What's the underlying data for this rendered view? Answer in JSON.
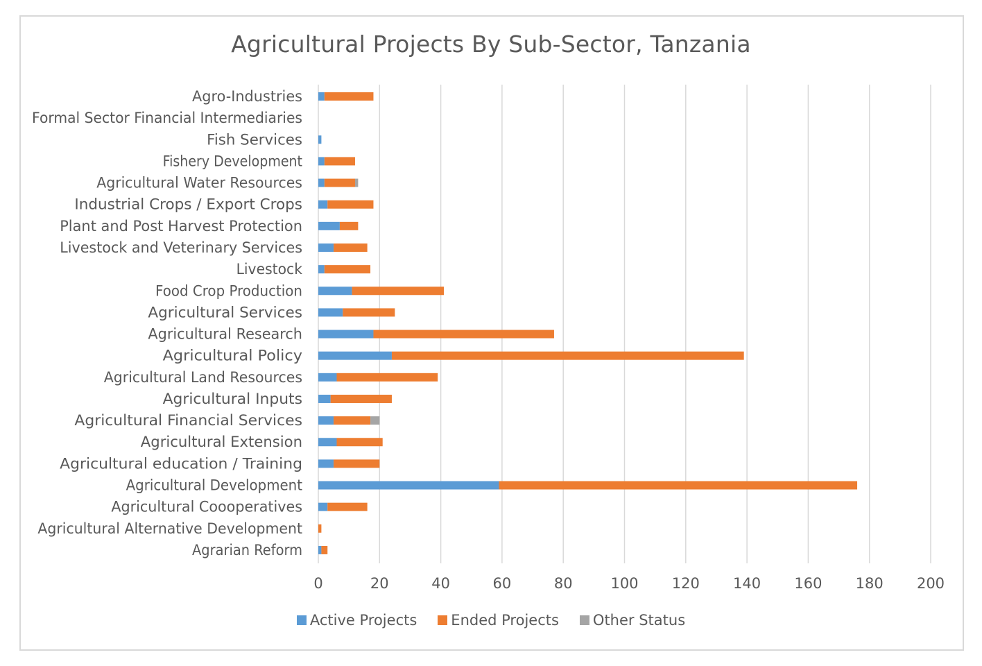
{
  "chart_data": {
    "type": "bar",
    "orientation": "horizontal",
    "stacked": true,
    "title": "Agricultural Projects By Sub-Sector, Tanzania",
    "xlabel": "",
    "ylabel": "",
    "xlim": [
      0,
      200
    ],
    "xticks": [
      0,
      20,
      40,
      60,
      80,
      100,
      120,
      140,
      160,
      180,
      200
    ],
    "grid": true,
    "legend_position": "bottom",
    "categories": [
      "Agro-Industries",
      "Formal Sector Financial Intermediaries",
      "Fish Services",
      "Fishery Development",
      "Agricultural Water Resources",
      "Industrial Crops / Export Crops",
      "Plant and Post Harvest Protection",
      "Livestock and Veterinary Services",
      "Livestock",
      "Food Crop Production",
      "Agricultural Services",
      "Agricultural Research",
      "Agricultural Policy",
      "Agricultural Land Resources",
      "Agricultural Inputs",
      "Agricultural Financial Services",
      "Agricultural Extension",
      "Agricultural education / Training",
      "Agricultural Development",
      "Agricultural Coooperatives",
      "Agricultural Alternative Development",
      "Agrarian Reform"
    ],
    "series": [
      {
        "name": "Active Projects",
        "color": "#5b9bd5",
        "values": [
          2,
          0,
          1,
          2,
          2,
          3,
          7,
          5,
          2,
          11,
          8,
          18,
          24,
          6,
          4,
          5,
          6,
          5,
          59,
          3,
          0,
          1
        ]
      },
      {
        "name": "Ended Projects",
        "color": "#ed7d31",
        "values": [
          16,
          0,
          0,
          10,
          10,
          15,
          6,
          11,
          15,
          30,
          17,
          59,
          115,
          33,
          20,
          12,
          15,
          15,
          117,
          13,
          1,
          2
        ]
      },
      {
        "name": "Other Status",
        "color": "#a5a5a5",
        "values": [
          0,
          0,
          0,
          0,
          1,
          0,
          0,
          0,
          0,
          0,
          0,
          0,
          0,
          0,
          0,
          3,
          0,
          0,
          0,
          0,
          0,
          0
        ]
      }
    ]
  }
}
